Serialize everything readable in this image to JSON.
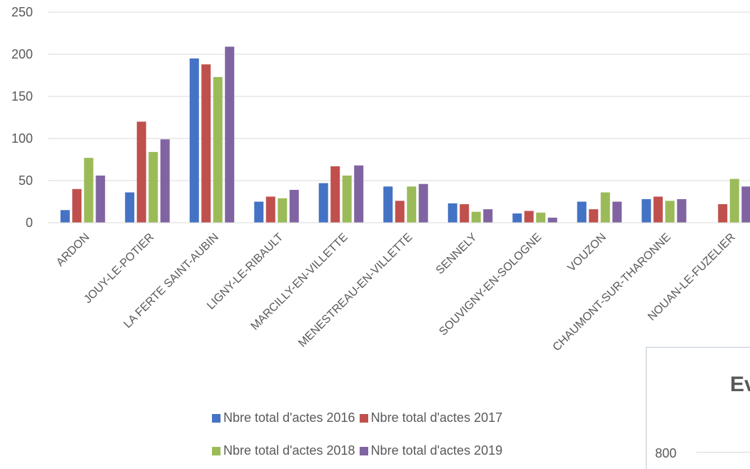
{
  "chart_data": {
    "type": "bar",
    "categories": [
      "ARDON",
      "JOUY-LE-POTIER",
      "LA FERTE SAINT-AUBIN",
      "LIGNY-LE-RIBAULT",
      "MARCILLY-EN-VILLETTE",
      "MENESTREAU-EN-VILLETTE",
      "SENNELY",
      "SOUVIGNY-EN-SOLOGNE",
      "VOUZON",
      "CHAUMONT-SUR-THARONNE",
      "NOUAN-LE-FUZELIER"
    ],
    "series": [
      {
        "name": "Nbre total d'actes 2016",
        "color": "#4472c4",
        "values": [
          15,
          36,
          195,
          25,
          47,
          43,
          23,
          11,
          25,
          28,
          0
        ]
      },
      {
        "name": "Nbre total d'actes 2017",
        "color": "#c0504d",
        "values": [
          40,
          120,
          188,
          31,
          67,
          26,
          22,
          14,
          16,
          31,
          22
        ]
      },
      {
        "name": "Nbre total d'actes 2018",
        "color": "#9bbb59",
        "values": [
          77,
          84,
          173,
          29,
          56,
          43,
          13,
          12,
          36,
          26,
          52
        ]
      },
      {
        "name": "Nbre total d'actes 2019",
        "color": "#8064a2",
        "values": [
          56,
          99,
          209,
          39,
          68,
          46,
          16,
          6,
          25,
          28,
          43
        ]
      }
    ],
    "ylim": [
      0,
      250
    ],
    "yticks": [
      0,
      50,
      100,
      150,
      200,
      250
    ],
    "grid": true,
    "legend_position": "bottom"
  },
  "inset_chart": {
    "title_fragment": "Ev",
    "tick_label": "800"
  }
}
